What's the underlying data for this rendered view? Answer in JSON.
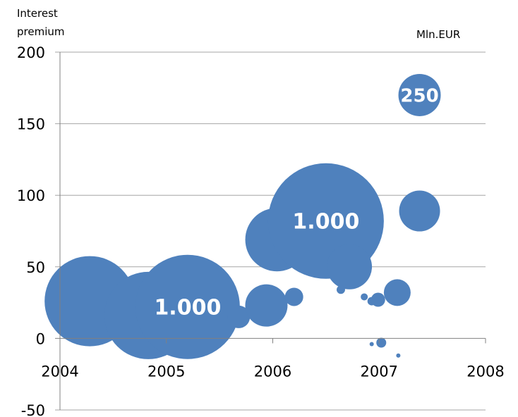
{
  "chart_data": {
    "type": "scatter",
    "subtype": "bubble",
    "ylabel": "Interest\npremium",
    "unit_label": "Mln.EUR",
    "xlim": [
      2004,
      2008
    ],
    "ylim": [
      -50,
      200
    ],
    "x_ticks": [
      "2004",
      "2005",
      "2006",
      "2007",
      "2008"
    ],
    "y_ticks": [
      "200",
      "150",
      "100",
      "50",
      "0",
      "-50"
    ],
    "grid": "horizontal",
    "color": "#4f81bd",
    "points": [
      {
        "x": 2004.28,
        "y": 26,
        "r": 64
      },
      {
        "x": 2004.83,
        "y": 16,
        "r": 62
      },
      {
        "x": 2005.2,
        "y": 22,
        "r": 74,
        "label": "1.000"
      },
      {
        "x": 2005.68,
        "y": 15,
        "r": 16
      },
      {
        "x": 2005.94,
        "y": 23,
        "r": 30
      },
      {
        "x": 2006.2,
        "y": 29,
        "r": 13
      },
      {
        "x": 2006.04,
        "y": 69,
        "r": 45
      },
      {
        "x": 2006.5,
        "y": 82,
        "r": 82,
        "label": "1.000"
      },
      {
        "x": 2006.72,
        "y": 50,
        "r": 32
      },
      {
        "x": 2006.64,
        "y": 34,
        "r": 6
      },
      {
        "x": 2006.86,
        "y": 29,
        "r": 5
      },
      {
        "x": 2006.93,
        "y": 26,
        "r": 6
      },
      {
        "x": 2006.99,
        "y": 27,
        "r": 10
      },
      {
        "x": 2007.17,
        "y": 32,
        "r": 19
      },
      {
        "x": 2007.02,
        "y": -3,
        "r": 7
      },
      {
        "x": 2006.93,
        "y": -4,
        "r": 3
      },
      {
        "x": 2007.18,
        "y": -12,
        "r": 3
      },
      {
        "x": 2007.38,
        "y": 170,
        "r": 30,
        "label": "250"
      },
      {
        "x": 2007.38,
        "y": 89,
        "r": 29
      }
    ]
  }
}
